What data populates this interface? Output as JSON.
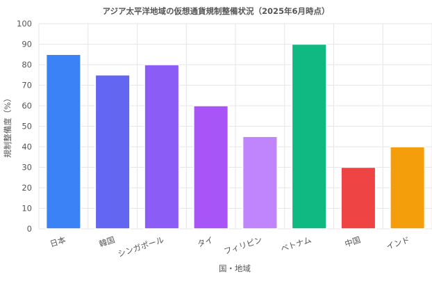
{
  "chart_data": {
    "type": "bar",
    "title": "アジア太平洋地域の仮想通貨規制整備状況（2025年6月時点）",
    "xlabel": "国・地域",
    "ylabel": "規制整備度（%）",
    "ylim": [
      0,
      100
    ],
    "yticks": [
      0,
      10,
      20,
      30,
      40,
      50,
      60,
      70,
      80,
      90,
      100
    ],
    "grid": true,
    "legend": "none",
    "categories": [
      "日本",
      "韓国",
      "シンガポール",
      "タイ",
      "フィリピン",
      "ベトナム",
      "中国",
      "インド"
    ],
    "values": [
      85,
      75,
      80,
      60,
      45,
      90,
      30,
      40
    ],
    "colors": [
      "#3b82f6",
      "#6366f1",
      "#8b5cf6",
      "#a855f7",
      "#c084fc",
      "#10b981",
      "#ef4444",
      "#f59e0b"
    ]
  }
}
